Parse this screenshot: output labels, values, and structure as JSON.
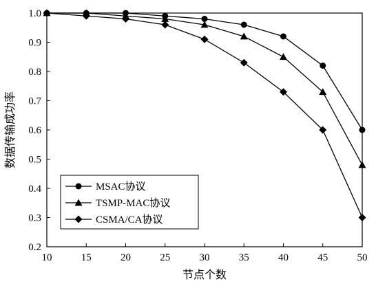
{
  "chart_data": {
    "type": "line",
    "xlabel": "节点个数",
    "ylabel": "数据传输成功率",
    "x": [
      10,
      15,
      20,
      25,
      30,
      35,
      40,
      45,
      50
    ],
    "xlim": [
      10,
      50
    ],
    "ylim": [
      0.2,
      1.0
    ],
    "xticks": [
      "10",
      "15",
      "20",
      "25",
      "30",
      "35",
      "40",
      "45",
      "50"
    ],
    "yticks": [
      "0.2",
      "0.3",
      "0.4",
      "0.5",
      "0.6",
      "0.7",
      "0.8",
      "0.9",
      "1.0"
    ],
    "grid": false,
    "legend_position": "bottom-left",
    "series": [
      {
        "name": "MSAC协议",
        "marker": "circle",
        "values": [
          1.0,
          1.0,
          1.0,
          0.99,
          0.98,
          0.96,
          0.92,
          0.82,
          0.6
        ]
      },
      {
        "name": "TSMP-MAC协议",
        "marker": "triangle",
        "values": [
          1.0,
          1.0,
          0.99,
          0.98,
          0.96,
          0.92,
          0.85,
          0.73,
          0.48
        ]
      },
      {
        "name": "CSMA/CA协议",
        "marker": "diamond",
        "values": [
          1.0,
          0.99,
          0.98,
          0.96,
          0.91,
          0.83,
          0.73,
          0.6,
          0.3
        ]
      }
    ]
  }
}
